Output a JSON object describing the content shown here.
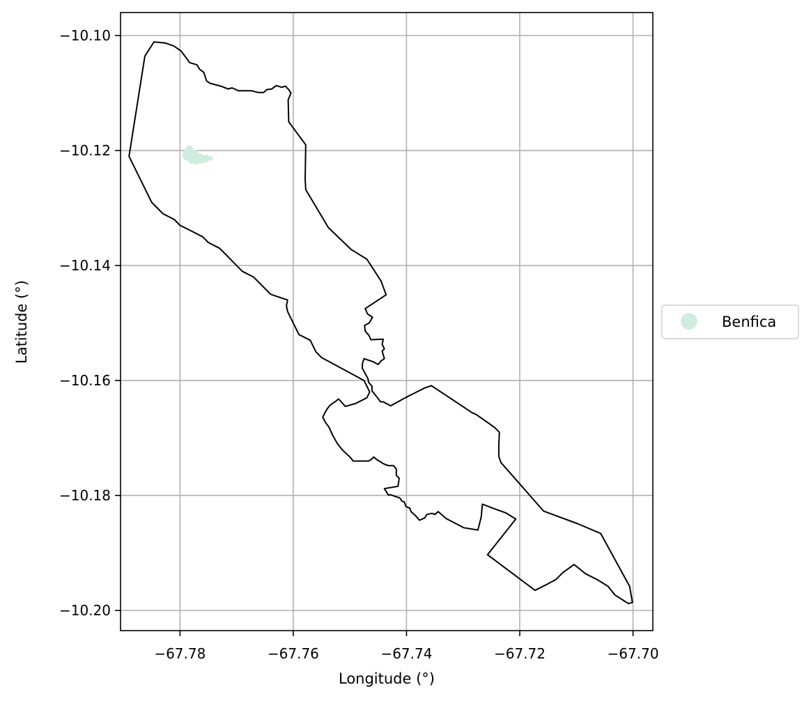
{
  "chart_data": {
    "type": "map",
    "xlabel": "Longitude (°)",
    "ylabel": "Latitude (°)",
    "xlim": [
      -67.7905,
      -67.6965
    ],
    "ylim": [
      -10.2035,
      -10.096
    ],
    "xticks": [
      -67.78,
      -67.76,
      -67.74,
      -67.72,
      -67.7
    ],
    "xtick_labels": [
      "−67.78",
      "−67.76",
      "−67.74",
      "−67.72",
      "−67.70"
    ],
    "yticks": [
      -10.1,
      -10.12,
      -10.14,
      -10.16,
      -10.18,
      -10.2
    ],
    "ytick_labels": [
      "−10.10",
      "−10.12",
      "−10.14",
      "−10.16",
      "−10.18",
      "−10.20"
    ],
    "grid": true,
    "legend": {
      "placement": "right-outside",
      "entries": [
        {
          "label": "Benfica",
          "color": "#d0ecdf"
        }
      ]
    },
    "colors": {
      "outline": "#000000",
      "benfica_fill": "#d0ecdf",
      "grid": "#b0b0b0"
    },
    "outline_coords": [
      [
        -67.7862,
        -10.1036
      ],
      [
        -67.7846,
        -10.1011
      ],
      [
        -67.7826,
        -10.1013
      ],
      [
        -67.7811,
        -10.1018
      ],
      [
        -67.7798,
        -10.1027
      ],
      [
        -67.7783,
        -10.1047
      ],
      [
        -67.777,
        -10.1051
      ],
      [
        -67.7765,
        -10.1059
      ],
      [
        -67.7758,
        -10.1064
      ],
      [
        -67.7753,
        -10.1079
      ],
      [
        -67.7747,
        -10.1083
      ],
      [
        -67.7728,
        -10.1088
      ],
      [
        -67.7715,
        -10.1093
      ],
      [
        -67.7708,
        -10.1091
      ],
      [
        -67.7697,
        -10.1096
      ],
      [
        -67.7674,
        -10.1096
      ],
      [
        -67.7662,
        -10.1099
      ],
      [
        -67.7652,
        -10.1099
      ],
      [
        -67.7647,
        -10.1094
      ],
      [
        -67.7638,
        -10.1093
      ],
      [
        -67.763,
        -10.1087
      ],
      [
        -67.762,
        -10.109
      ],
      [
        -67.7614,
        -10.1088
      ],
      [
        -67.7608,
        -10.1094
      ],
      [
        -67.7604,
        -10.11
      ],
      [
        -67.7609,
        -10.1112
      ],
      [
        -67.7608,
        -10.115
      ],
      [
        -67.7578,
        -10.119
      ],
      [
        -67.7579,
        -10.125
      ],
      [
        -67.7578,
        -10.1268
      ],
      [
        -67.7538,
        -10.1334
      ],
      [
        -67.7498,
        -10.1372
      ],
      [
        -67.747,
        -10.1389
      ],
      [
        -67.7445,
        -10.1427
      ],
      [
        -67.7436,
        -10.1451
      ],
      [
        -67.7473,
        -10.1475
      ],
      [
        -67.7469,
        -10.1484
      ],
      [
        -67.746,
        -10.149
      ],
      [
        -67.7466,
        -10.15
      ],
      [
        -67.7474,
        -10.1504
      ],
      [
        -67.7473,
        -10.1514
      ],
      [
        -67.7466,
        -10.1522
      ],
      [
        -67.7463,
        -10.1529
      ],
      [
        -67.7441,
        -10.1528
      ],
      [
        -67.7443,
        -10.1537
      ],
      [
        -67.7439,
        -10.1545
      ],
      [
        -67.7443,
        -10.1549
      ],
      [
        -67.7439,
        -10.1562
      ],
      [
        -67.7445,
        -10.1566
      ],
      [
        -67.745,
        -10.1572
      ],
      [
        -67.746,
        -10.1567
      ],
      [
        -67.7469,
        -10.1564
      ],
      [
        -67.7475,
        -10.1562
      ],
      [
        -67.7478,
        -10.1571
      ],
      [
        -67.7478,
        -10.1579
      ],
      [
        -67.7474,
        -10.1586
      ],
      [
        -67.7468,
        -10.1597
      ],
      [
        -67.7467,
        -10.1603
      ],
      [
        -67.7461,
        -10.161
      ],
      [
        -67.7461,
        -10.1618
      ],
      [
        -67.7452,
        -10.1629
      ],
      [
        -67.7446,
        -10.1637
      ],
      [
        -67.7441,
        -10.1637
      ],
      [
        -67.7428,
        -10.1644
      ],
      [
        -67.7402,
        -10.163
      ],
      [
        -67.7378,
        -10.1618
      ],
      [
        -67.7368,
        -10.1613
      ],
      [
        -67.7356,
        -10.1609
      ],
      [
        -67.7284,
        -10.1656
      ],
      [
        -67.7277,
        -10.1659
      ],
      [
        -67.7264,
        -10.1668
      ],
      [
        -67.7244,
        -10.1682
      ],
      [
        -67.7236,
        -10.169
      ],
      [
        -67.7237,
        -10.1714
      ],
      [
        -67.7237,
        -10.1732
      ],
      [
        -67.7233,
        -10.1743
      ],
      [
        -67.7216,
        -10.1762
      ],
      [
        -67.7158,
        -10.1827
      ],
      [
        -67.7098,
        -10.1849
      ],
      [
        -67.7057,
        -10.1866
      ],
      [
        -67.7006,
        -10.1958
      ],
      [
        -67.7001,
        -10.1986
      ],
      [
        -67.7008,
        -10.1988
      ],
      [
        -67.7016,
        -10.1983
      ],
      [
        -67.7032,
        -10.1973
      ],
      [
        -67.7044,
        -10.1958
      ],
      [
        -67.7062,
        -10.1947
      ],
      [
        -67.7084,
        -10.1936
      ],
      [
        -67.7104,
        -10.192
      ],
      [
        -67.7124,
        -10.1934
      ],
      [
        -67.7136,
        -10.1946
      ],
      [
        -67.7153,
        -10.1955
      ],
      [
        -67.7173,
        -10.1965
      ],
      [
        -67.7257,
        -10.1903
      ],
      [
        -67.7207,
        -10.1841
      ],
      [
        -67.7225,
        -10.183
      ],
      [
        -67.7245,
        -10.1823
      ],
      [
        -67.7266,
        -10.1815
      ],
      [
        -67.7268,
        -10.1837
      ],
      [
        -67.727,
        -10.1845
      ],
      [
        -67.7274,
        -10.186
      ],
      [
        -67.7299,
        -10.1856
      ],
      [
        -67.733,
        -10.184
      ],
      [
        -67.7344,
        -10.1828
      ],
      [
        -67.735,
        -10.1833
      ],
      [
        -67.7355,
        -10.1831
      ],
      [
        -67.7364,
        -10.1833
      ],
      [
        -67.7368,
        -10.1839
      ],
      [
        -67.7377,
        -10.1843
      ],
      [
        -67.7385,
        -10.1834
      ],
      [
        -67.7392,
        -10.1828
      ],
      [
        -67.7394,
        -10.1822
      ],
      [
        -67.7401,
        -10.1819
      ],
      [
        -67.7404,
        -10.1811
      ],
      [
        -67.7408,
        -10.181
      ],
      [
        -67.7412,
        -10.1804
      ],
      [
        -67.7419,
        -10.1802
      ],
      [
        -67.7427,
        -10.1799
      ],
      [
        -67.7432,
        -10.1799
      ],
      [
        -67.7439,
        -10.1788
      ],
      [
        -67.7415,
        -10.1784
      ],
      [
        -67.7413,
        -10.177
      ],
      [
        -67.7418,
        -10.1765
      ],
      [
        -67.7418,
        -10.1754
      ],
      [
        -67.7423,
        -10.1748
      ],
      [
        -67.7432,
        -10.1748
      ],
      [
        -67.7438,
        -10.1746
      ],
      [
        -67.7442,
        -10.1744
      ],
      [
        -67.7445,
        -10.1742
      ],
      [
        -67.7452,
        -10.1738
      ],
      [
        -67.7458,
        -10.1733
      ],
      [
        -67.7463,
        -10.1738
      ],
      [
        -67.7467,
        -10.174
      ],
      [
        -67.7478,
        -10.174
      ],
      [
        -67.7488,
        -10.174
      ],
      [
        -67.7494,
        -10.174
      ],
      [
        -67.75,
        -10.1733
      ],
      [
        -67.7512,
        -10.1722
      ],
      [
        -67.7522,
        -10.171
      ],
      [
        -67.753,
        -10.1696
      ],
      [
        -67.7537,
        -10.1681
      ],
      [
        -67.7543,
        -10.1673
      ],
      [
        -67.7548,
        -10.1664
      ],
      [
        -67.7545,
        -10.1658
      ],
      [
        -67.754,
        -10.1649
      ],
      [
        -67.7535,
        -10.1643
      ],
      [
        -67.7525,
        -10.1636
      ],
      [
        -67.752,
        -10.1632
      ],
      [
        -67.7508,
        -10.1645
      ],
      [
        -67.749,
        -10.164
      ],
      [
        -67.747,
        -10.163
      ],
      [
        -67.7465,
        -10.162
      ],
      [
        -67.747,
        -10.161
      ],
      [
        -67.7475,
        -10.16
      ],
      [
        -67.755,
        -10.156
      ],
      [
        -67.756,
        -10.155
      ],
      [
        -67.757,
        -10.153
      ],
      [
        -67.759,
        -10.152
      ],
      [
        -67.76,
        -10.15
      ],
      [
        -67.7605,
        -10.149
      ],
      [
        -67.761,
        -10.148
      ],
      [
        -67.7612,
        -10.147
      ],
      [
        -67.761,
        -10.146
      ],
      [
        -67.764,
        -10.145
      ],
      [
        -67.765,
        -10.144
      ],
      [
        -67.766,
        -10.143
      ],
      [
        -67.767,
        -10.142
      ],
      [
        -67.769,
        -10.141
      ],
      [
        -67.77,
        -10.14
      ],
      [
        -67.771,
        -10.139
      ],
      [
        -67.772,
        -10.138
      ],
      [
        -67.773,
        -10.137
      ],
      [
        -67.775,
        -10.136
      ],
      [
        -67.776,
        -10.135
      ],
      [
        -67.778,
        -10.134
      ],
      [
        -67.78,
        -10.133
      ],
      [
        -67.781,
        -10.132
      ],
      [
        -67.783,
        -10.131
      ],
      [
        -67.784,
        -10.13
      ],
      [
        -67.785,
        -10.129
      ],
      [
        -67.786,
        -10.127
      ],
      [
        -67.787,
        -10.125
      ],
      [
        -67.788,
        -10.123
      ],
      [
        -67.789,
        -10.121
      ]
    ],
    "benfica_coords": [
      [
        -67.7795,
        -10.1204
      ],
      [
        -67.7791,
        -10.1196
      ],
      [
        -67.7787,
        -10.1192
      ],
      [
        -67.7782,
        -10.1191
      ],
      [
        -67.7778,
        -10.1194
      ],
      [
        -67.7775,
        -10.1199
      ],
      [
        -67.777,
        -10.1199
      ],
      [
        -67.7768,
        -10.1204
      ],
      [
        -67.7763,
        -10.1205
      ],
      [
        -67.7758,
        -10.1209
      ],
      [
        -67.7752,
        -10.1207
      ],
      [
        -67.7748,
        -10.121
      ],
      [
        -67.7743,
        -10.121
      ],
      [
        -67.7742,
        -10.1217
      ],
      [
        -67.7748,
        -10.1217
      ],
      [
        -67.7751,
        -10.1221
      ],
      [
        -67.7756,
        -10.122
      ],
      [
        -67.7761,
        -10.1223
      ],
      [
        -67.7767,
        -10.1222
      ],
      [
        -67.7772,
        -10.1225
      ],
      [
        -67.7776,
        -10.1222
      ],
      [
        -67.7781,
        -10.1223
      ],
      [
        -67.7786,
        -10.1218
      ],
      [
        -67.7791,
        -10.1216
      ],
      [
        -67.7796,
        -10.1211
      ]
    ]
  }
}
